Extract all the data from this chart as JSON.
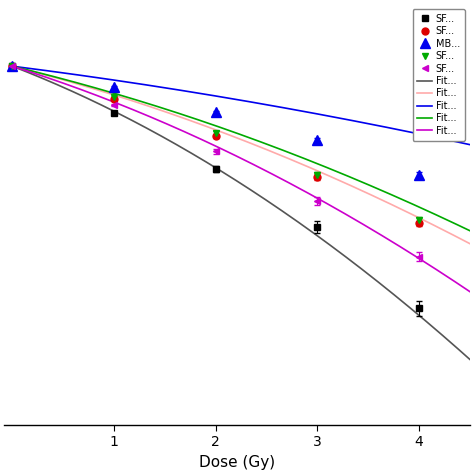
{
  "xlabel": "Dose (Gy)",
  "doses_data": [
    0,
    1,
    2,
    3,
    4
  ],
  "series": [
    {
      "label": "SF...",
      "fit_label": "Fit...",
      "marker": "s",
      "markersize": 5,
      "color": "#000000",
      "fit_color": "#555555",
      "values": [
        1.0,
        0.5,
        0.22,
        0.093,
        0.028
      ],
      "yerr": [
        0.0,
        0.01,
        0.01,
        0.008,
        0.003
      ],
      "alpha": 0.58,
      "beta": 0.085
    },
    {
      "label": "SF...",
      "fit_label": "Fit...",
      "marker": "o",
      "markersize": 5,
      "color": "#dd0000",
      "fit_color": "#ffaaaa",
      "values": [
        1.0,
        0.615,
        0.355,
        0.195,
        0.098
      ],
      "yerr": [
        0.0,
        0.01,
        0.01,
        0.008,
        0.004
      ],
      "alpha": 0.38,
      "beta": 0.045
    },
    {
      "label": "MB...",
      "fit_label": "Fit...",
      "marker": "^",
      "markersize": 7,
      "color": "#0000ee",
      "fit_color": "#0000ee",
      "values": [
        1.0,
        0.73,
        0.505,
        0.335,
        0.2
      ],
      "yerr": [
        0.0,
        0.012,
        0.012,
        0.01,
        0.008
      ],
      "alpha": 0.19,
      "beta": 0.015
    },
    {
      "label": "SF...",
      "fit_label": "Fit...",
      "marker": "v",
      "markersize": 5,
      "color": "#00aa00",
      "fit_color": "#00aa00",
      "values": [
        1.0,
        0.635,
        0.375,
        0.2,
        0.103
      ],
      "yerr": [
        0.0,
        0.01,
        0.01,
        0.008,
        0.004
      ],
      "alpha": 0.36,
      "beta": 0.04
    },
    {
      "label": "SF...",
      "fit_label": "Fit...",
      "marker": "<",
      "markersize": 5,
      "color": "#cc00cc",
      "fit_color": "#cc00cc",
      "values": [
        1.0,
        0.565,
        0.285,
        0.136,
        0.06
      ],
      "yerr": [
        0.0,
        0.01,
        0.01,
        0.008,
        0.004
      ],
      "alpha": 0.47,
      "beta": 0.06
    }
  ],
  "background_color": "#ffffff",
  "legend_fontsize": 7.0,
  "label_fontsize": 11,
  "ylim": [
    0.005,
    2.5
  ],
  "xlim": [
    -0.08,
    4.5
  ]
}
